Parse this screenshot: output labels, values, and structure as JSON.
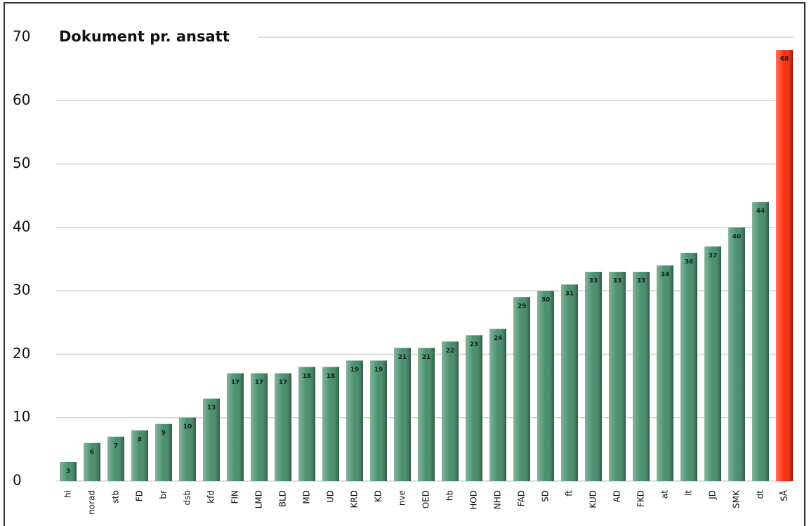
{
  "chart_data": {
    "type": "bar",
    "title": "Dokument pr. ansatt",
    "categories": [
      "hi",
      "norad",
      "stb",
      "FD",
      "br",
      "dsb",
      "kfd",
      "FIN",
      "LMD",
      "BLD",
      "MD",
      "UD",
      "KRD",
      "KD",
      "nve",
      "OED",
      "hb",
      "HOD",
      "NHD",
      "FAD",
      "SD",
      "ft",
      "KUD",
      "AD",
      "FKD",
      "at",
      "lt",
      "JD",
      "SMK",
      "dt",
      "SÅ"
    ],
    "values": [
      3,
      6,
      7,
      8,
      9,
      10,
      13,
      17,
      17,
      17,
      18,
      18,
      19,
      19,
      21,
      21,
      22,
      23,
      24,
      29,
      30,
      31,
      33,
      33,
      33,
      34,
      36,
      37,
      40,
      44,
      68
    ],
    "colors": [
      "#3f8a66",
      "#3f8a66",
      "#3f8a66",
      "#3f8a66",
      "#3f8a66",
      "#3f8a66",
      "#3f8a66",
      "#3f8a66",
      "#3f8a66",
      "#3f8a66",
      "#3f8a66",
      "#3f8a66",
      "#3f8a66",
      "#3f8a66",
      "#3f8a66",
      "#3f8a66",
      "#3f8a66",
      "#3f8a66",
      "#3f8a66",
      "#3f8a66",
      "#3f8a66",
      "#3f8a66",
      "#3f8a66",
      "#3f8a66",
      "#3f8a66",
      "#3f8a66",
      "#3f8a66",
      "#3f8a66",
      "#3f8a66",
      "#3f8a66",
      "#ff2200"
    ],
    "ylim": [
      0,
      70
    ],
    "yticks": [
      0,
      10,
      20,
      30,
      40,
      50,
      60,
      70
    ],
    "grid": true
  }
}
